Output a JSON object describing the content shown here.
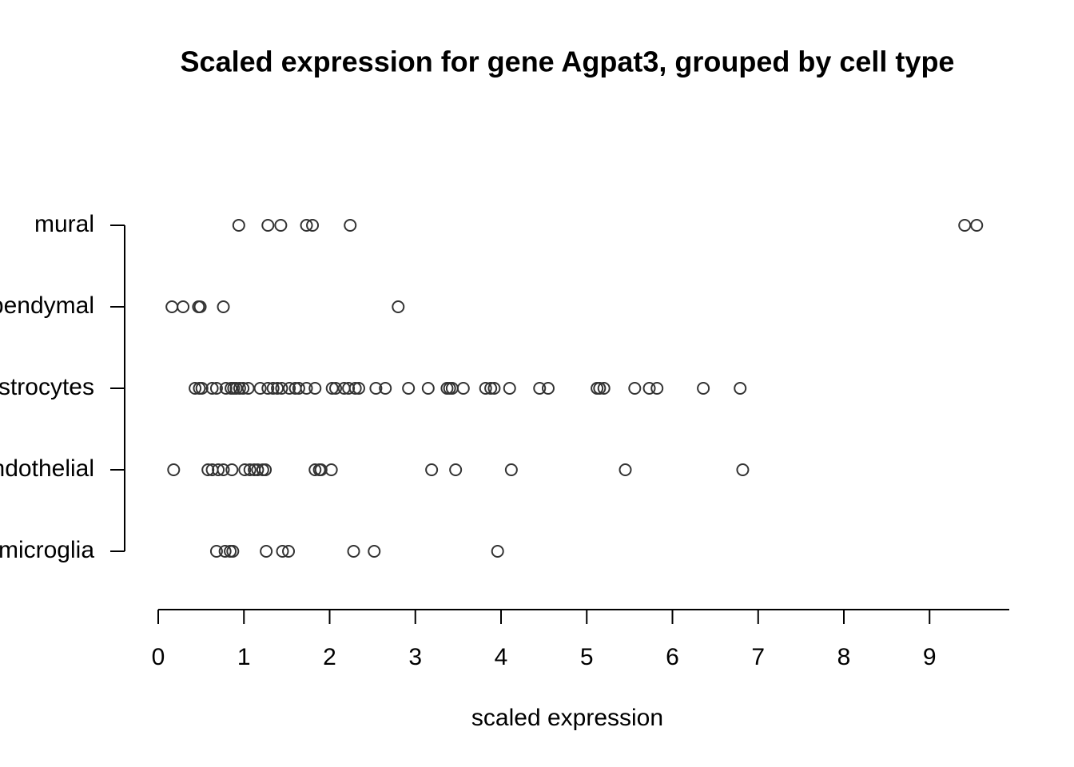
{
  "chart_data": {
    "type": "strip",
    "title": "Scaled expression for gene Agpat3, grouped by cell type",
    "x_label": "scaled expression",
    "categories": [
      "microglia",
      "endothelial",
      "astrocytes",
      "ependymal",
      "mural"
    ],
    "values": [
      [
        0.68,
        0.78,
        0.84,
        0.87,
        1.26,
        1.45,
        1.52,
        2.28,
        2.52,
        3.96
      ],
      [
        0.18,
        0.58,
        0.63,
        0.7,
        0.76,
        0.86,
        1.01,
        1.07,
        1.12,
        1.16,
        1.22,
        1.25,
        1.83,
        1.88,
        1.9,
        2.02,
        3.19,
        3.47,
        4.12,
        5.45,
        6.82
      ],
      [
        0.43,
        0.48,
        0.51,
        0.63,
        0.68,
        0.79,
        0.85,
        0.88,
        0.91,
        0.95,
        0.99,
        1.05,
        1.19,
        1.28,
        1.34,
        1.39,
        1.44,
        1.53,
        1.6,
        1.64,
        1.73,
        1.83,
        2.03,
        2.07,
        2.17,
        2.22,
        2.3,
        2.34,
        2.54,
        2.65,
        2.92,
        3.15,
        3.37,
        3.4,
        3.43,
        3.56,
        3.82,
        3.88,
        3.92,
        4.1,
        4.45,
        4.55,
        5.12,
        5.15,
        5.2,
        5.56,
        5.73,
        5.82,
        6.36,
        6.79
      ],
      [
        0.16,
        0.29,
        0.47,
        0.49,
        0.76,
        2.8
      ],
      [
        0.94,
        1.28,
        1.43,
        1.73,
        1.8,
        2.24,
        9.41,
        9.55
      ]
    ],
    "color": "#333333",
    "xlim": [
      0,
      9.93
    ],
    "xticks": [
      0,
      1,
      2,
      3,
      4,
      5,
      6,
      7,
      8,
      9
    ]
  }
}
